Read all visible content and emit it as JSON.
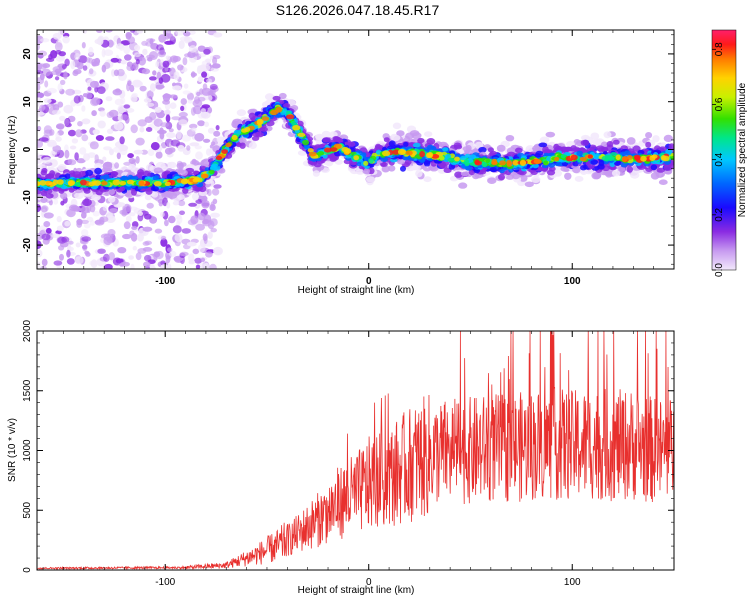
{
  "title": "S126.2026.047.18.45.R17",
  "chart_data": [
    {
      "type": "heatmap",
      "name": "spectrogram",
      "xlabel": "Height of straight line (km)",
      "ylabel": "Frequency (Hz)",
      "xlim": [
        -163,
        150
      ],
      "ylim": [
        -25,
        25
      ],
      "xticks": [
        -100,
        0,
        100
      ],
      "yticks": [
        -20,
        -10,
        0,
        10,
        20
      ],
      "colorbar": {
        "label": "Normalized spectral amplitude",
        "range": [
          0,
          0.87
        ],
        "ticks": [
          0.0,
          0.2,
          0.4,
          0.6,
          0.8
        ]
      },
      "ridge": {
        "x": [
          -163,
          -120,
          -100,
          -85,
          -78,
          -72,
          -65,
          -58,
          -52,
          -45,
          -40,
          -35,
          -30,
          -27,
          -22,
          -15,
          -10,
          -3,
          0,
          5,
          15,
          30,
          50,
          70,
          90,
          110,
          130,
          150
        ],
        "y": [
          -7,
          -7,
          -7,
          -6.5,
          -5,
          -1,
          3,
          4.5,
          6,
          8.5,
          8,
          4,
          1,
          -1.5,
          -0.5,
          0.5,
          -0.5,
          -2.5,
          -3,
          -1,
          -0.5,
          -1,
          -2.5,
          -3,
          -2,
          -1.5,
          -2,
          -1.5
        ]
      },
      "noise_region_x": [
        -163,
        -80
      ]
    },
    {
      "type": "line",
      "name": "snr",
      "xlabel": "Height of straight line (km)",
      "ylabel": "SNR (10 * v/v)",
      "xlim": [
        -163,
        150
      ],
      "ylim": [
        0,
        2000
      ],
      "xticks": [
        -100,
        0,
        100
      ],
      "yticks": [
        0,
        500,
        1000,
        1500,
        2000
      ],
      "color": "#e8302e",
      "envelope": {
        "x": [
          -163,
          -90,
          -70,
          -55,
          -45,
          -35,
          -25,
          -15,
          -5,
          0,
          10,
          20,
          30,
          40,
          50,
          60,
          70,
          80,
          90,
          100,
          110,
          120,
          130,
          140,
          150
        ],
        "y": [
          15,
          20,
          40,
          130,
          200,
          300,
          420,
          560,
          650,
          720,
          780,
          880,
          960,
          1000,
          1000,
          1020,
          1020,
          1040,
          1060,
          1040,
          1060,
          1040,
          1050,
          1000,
          1000
        ]
      }
    }
  ]
}
